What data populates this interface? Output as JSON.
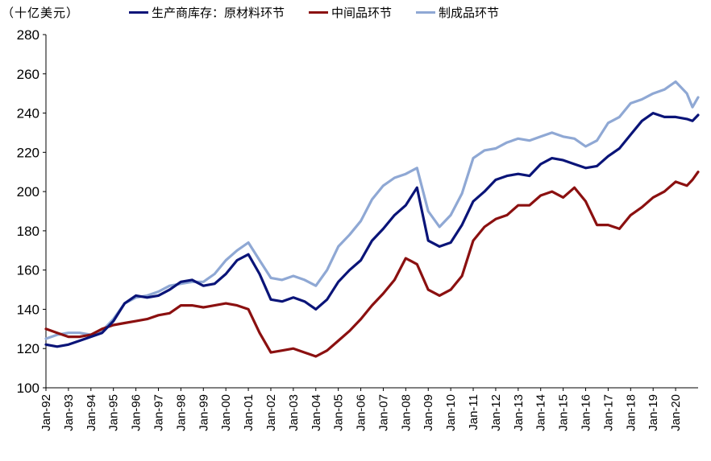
{
  "chart_data": {
    "type": "line",
    "title": "",
    "unit_label": "（十亿美元）",
    "xlabel": "",
    "ylabel": "",
    "ylim": [
      100,
      280
    ],
    "yticks": [
      100,
      120,
      140,
      160,
      180,
      200,
      220,
      240,
      260,
      280
    ],
    "xlim": [
      1992.0,
      2021.0
    ],
    "x_tick_labels": [
      "Jan-92",
      "Jan-93",
      "Jan-94",
      "Jan-95",
      "Jan-96",
      "Jan-97",
      "Jan-98",
      "Jan-99",
      "Jan-00",
      "Jan-01",
      "Jan-02",
      "Jan-03",
      "Jan-04",
      "Jan-05",
      "Jan-06",
      "Jan-07",
      "Jan-08",
      "Jan-09",
      "Jan-10",
      "Jan-11",
      "Jan-12",
      "Jan-13",
      "Jan-14",
      "Jan-15",
      "Jan-16",
      "Jan-17",
      "Jan-18",
      "Jan-19",
      "Jan-20"
    ],
    "x_tick_years": [
      1992,
      1993,
      1994,
      1995,
      1996,
      1997,
      1998,
      1999,
      2000,
      2001,
      2002,
      2003,
      2004,
      2005,
      2006,
      2007,
      2008,
      2009,
      2010,
      2011,
      2012,
      2013,
      2014,
      2015,
      2016,
      2017,
      2018,
      2019,
      2020
    ],
    "grid": false,
    "legend_position": "top",
    "series": [
      {
        "name": "生产商库存：原材料环节",
        "color": "#0a1478",
        "x": [
          1992.0,
          1992.5,
          1993.0,
          1993.5,
          1994.0,
          1994.5,
          1995.0,
          1995.5,
          1996.0,
          1996.5,
          1997.0,
          1997.5,
          1998.0,
          1998.5,
          1999.0,
          1999.5,
          2000.0,
          2000.5,
          2001.0,
          2001.5,
          2002.0,
          2002.5,
          2003.0,
          2003.5,
          2004.0,
          2004.5,
          2005.0,
          2005.5,
          2006.0,
          2006.5,
          2007.0,
          2007.5,
          2008.0,
          2008.5,
          2009.0,
          2009.5,
          2010.0,
          2010.5,
          2011.0,
          2011.5,
          2012.0,
          2012.5,
          2013.0,
          2013.5,
          2014.0,
          2014.5,
          2015.0,
          2015.5,
          2016.0,
          2016.5,
          2017.0,
          2017.5,
          2018.0,
          2018.5,
          2019.0,
          2019.5,
          2020.0,
          2020.5,
          2020.75,
          2021.0
        ],
        "values": [
          122,
          121,
          122,
          124,
          126,
          128,
          134,
          143,
          147,
          146,
          147,
          150,
          154,
          155,
          152,
          153,
          158,
          165,
          168,
          158,
          145,
          144,
          146,
          144,
          140,
          145,
          154,
          160,
          165,
          175,
          181,
          188,
          193,
          202,
          175,
          172,
          174,
          183,
          195,
          200,
          206,
          208,
          209,
          208,
          214,
          217,
          216,
          214,
          212,
          213,
          218,
          222,
          229,
          236,
          240,
          238,
          238,
          237,
          236,
          239
        ]
      },
      {
        "name": "中间品环节",
        "color": "#8b1010",
        "x": [
          1992.0,
          1992.5,
          1993.0,
          1993.5,
          1994.0,
          1994.5,
          1995.0,
          1995.5,
          1996.0,
          1996.5,
          1997.0,
          1997.5,
          1998.0,
          1998.5,
          1999.0,
          1999.5,
          2000.0,
          2000.5,
          2001.0,
          2001.5,
          2002.0,
          2002.5,
          2003.0,
          2003.5,
          2004.0,
          2004.5,
          2005.0,
          2005.5,
          2006.0,
          2006.5,
          2007.0,
          2007.5,
          2008.0,
          2008.5,
          2009.0,
          2009.5,
          2010.0,
          2010.5,
          2011.0,
          2011.5,
          2012.0,
          2012.5,
          2013.0,
          2013.5,
          2014.0,
          2014.5,
          2015.0,
          2015.5,
          2016.0,
          2016.5,
          2017.0,
          2017.5,
          2018.0,
          2018.5,
          2019.0,
          2019.5,
          2020.0,
          2020.5,
          2020.75,
          2021.0
        ],
        "values": [
          130,
          128,
          126,
          126,
          127,
          130,
          132,
          133,
          134,
          135,
          137,
          138,
          142,
          142,
          141,
          142,
          143,
          142,
          140,
          128,
          118,
          119,
          120,
          118,
          116,
          119,
          124,
          129,
          135,
          142,
          148,
          155,
          166,
          163,
          150,
          147,
          150,
          157,
          175,
          182,
          186,
          188,
          193,
          193,
          198,
          200,
          197,
          202,
          195,
          183,
          183,
          181,
          188,
          192,
          197,
          200,
          205,
          203,
          206,
          210
        ]
      },
      {
        "name": "制成品环节",
        "color": "#8fa8d4",
        "x": [
          1992.0,
          1992.5,
          1993.0,
          1993.5,
          1994.0,
          1994.5,
          1995.0,
          1995.5,
          1996.0,
          1996.5,
          1997.0,
          1997.5,
          1998.0,
          1998.5,
          1999.0,
          1999.5,
          2000.0,
          2000.5,
          2001.0,
          2001.5,
          2002.0,
          2002.5,
          2003.0,
          2003.5,
          2004.0,
          2004.5,
          2005.0,
          2005.5,
          2006.0,
          2006.5,
          2007.0,
          2007.5,
          2008.0,
          2008.5,
          2009.0,
          2009.5,
          2010.0,
          2010.5,
          2011.0,
          2011.5,
          2012.0,
          2012.5,
          2013.0,
          2013.5,
          2014.0,
          2014.5,
          2015.0,
          2015.5,
          2016.0,
          2016.5,
          2017.0,
          2017.5,
          2018.0,
          2018.5,
          2019.0,
          2019.5,
          2020.0,
          2020.5,
          2020.75,
          2021.0
        ],
        "values": [
          125,
          127,
          128,
          128,
          127,
          129,
          135,
          143,
          146,
          147,
          149,
          152,
          153,
          154,
          154,
          158,
          165,
          170,
          174,
          165,
          156,
          155,
          157,
          155,
          152,
          160,
          172,
          178,
          185,
          196,
          203,
          207,
          209,
          212,
          190,
          182,
          188,
          199,
          217,
          221,
          222,
          225,
          227,
          226,
          228,
          230,
          228,
          227,
          223,
          226,
          235,
          238,
          245,
          247,
          250,
          252,
          256,
          250,
          243,
          248
        ]
      }
    ]
  }
}
